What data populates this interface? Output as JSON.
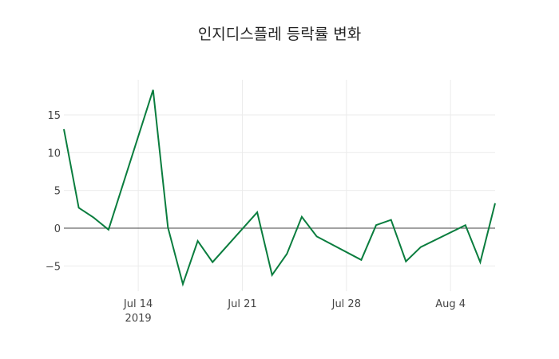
{
  "title": "인지디스플레 등락률 변화",
  "chart_data": {
    "type": "line",
    "title": "인지디스플레 등락률 변화",
    "xlabel": "",
    "ylabel": "",
    "x": [
      "2019-07-09",
      "2019-07-10",
      "2019-07-11",
      "2019-07-12",
      "2019-07-15",
      "2019-07-16",
      "2019-07-17",
      "2019-07-18",
      "2019-07-19",
      "2019-07-22",
      "2019-07-23",
      "2019-07-24",
      "2019-07-25",
      "2019-07-26",
      "2019-07-29",
      "2019-07-30",
      "2019-07-31",
      "2019-08-01",
      "2019-08-02",
      "2019-08-05",
      "2019-08-06",
      "2019-08-07"
    ],
    "series": [
      {
        "name": "등락률",
        "color": "#0a7d3e",
        "values": [
          13.1,
          2.7,
          1.4,
          -0.2,
          18.3,
          0.1,
          -7.4,
          -1.7,
          -4.5,
          2.1,
          -6.2,
          -3.4,
          1.5,
          -1.1,
          -4.2,
          0.4,
          1.1,
          -4.4,
          -2.5,
          0.4,
          -4.5,
          3.3
        ]
      }
    ],
    "x_ticks": [
      {
        "label": "Jul 14",
        "sublabel": "2019",
        "date": "2019-07-14"
      },
      {
        "label": "Jul 21",
        "sublabel": "",
        "date": "2019-07-21"
      },
      {
        "label": "Jul 28",
        "sublabel": "",
        "date": "2019-07-28"
      },
      {
        "label": "Aug 4",
        "sublabel": "",
        "date": "2019-08-04"
      }
    ],
    "y_ticks": [
      -5,
      0,
      5,
      10,
      15
    ],
    "ylim": [
      -7.9,
      19.2
    ],
    "xlim": [
      "2019-07-09",
      "2019-08-07"
    ],
    "grid": true,
    "zero_line": true,
    "legend": "none"
  }
}
